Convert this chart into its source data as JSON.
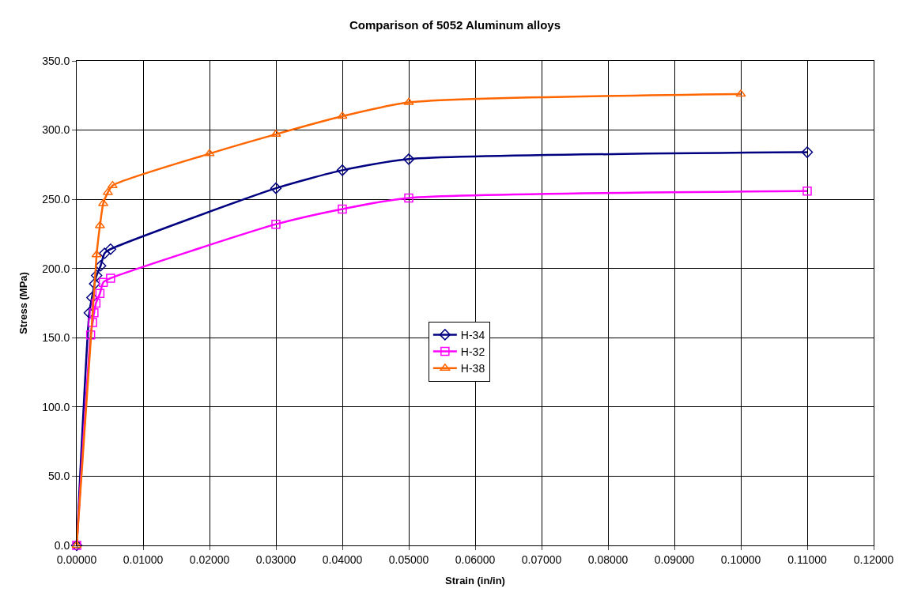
{
  "chart_data": {
    "type": "line",
    "title": "Comparison of 5052 Aluminum alloys",
    "xlabel": "Strain (in/in)",
    "ylabel": "Stress (MPa)",
    "xlim": [
      0,
      0.12
    ],
    "xticks": [
      {
        "value": 0,
        "label": "0.00000"
      },
      {
        "value": 0.01,
        "label": "0.01000"
      },
      {
        "value": 0.02,
        "label": "0.02000"
      },
      {
        "value": 0.03,
        "label": "0.03000"
      },
      {
        "value": 0.04,
        "label": "0.04000"
      },
      {
        "value": 0.05,
        "label": "0.05000"
      },
      {
        "value": 0.06,
        "label": "0.06000"
      },
      {
        "value": 0.07,
        "label": "0.07000"
      },
      {
        "value": 0.08,
        "label": "0.08000"
      },
      {
        "value": 0.09,
        "label": "0.09000"
      },
      {
        "value": 0.1,
        "label": "0.10000"
      },
      {
        "value": 0.11,
        "label": "0.11000"
      },
      {
        "value": 0.12,
        "label": "0.12000"
      }
    ],
    "ylim": [
      0,
      350
    ],
    "yticks": [
      {
        "value": 0,
        "label": "0.0"
      },
      {
        "value": 50,
        "label": "50.0"
      },
      {
        "value": 100,
        "label": "100.0"
      },
      {
        "value": 150,
        "label": "150.0"
      },
      {
        "value": 200,
        "label": "200.0"
      },
      {
        "value": 250,
        "label": "250.0"
      },
      {
        "value": 300,
        "label": "300.0"
      },
      {
        "value": 350,
        "label": "350.0"
      }
    ],
    "grid": true,
    "legend": "center",
    "series": [
      {
        "name": "H-34",
        "color": "#000080",
        "marker": "diamond",
        "x": [
          0,
          0.0019,
          0.0023,
          0.0027,
          0.003,
          0.0036,
          0.0042,
          0.0051,
          0.03,
          0.04,
          0.05,
          0.11
        ],
        "values": [
          0,
          168,
          179,
          189,
          195,
          202,
          211,
          214,
          258,
          271,
          279,
          284
        ]
      },
      {
        "name": "H-32",
        "color": "#ff00ff",
        "marker": "square",
        "x": [
          0,
          0.0021,
          0.0024,
          0.0026,
          0.0029,
          0.0035,
          0.004,
          0.0051,
          0.03,
          0.04,
          0.05,
          0.11
        ],
        "values": [
          0,
          152,
          161,
          168,
          175,
          182,
          190,
          193,
          232,
          243,
          251,
          256
        ]
      },
      {
        "name": "H-38",
        "color": "#ff6600",
        "marker": "triangle",
        "x": [
          0,
          0.003,
          0.0035,
          0.004,
          0.0047,
          0.0054,
          0.02,
          0.03,
          0.04,
          0.05,
          0.1
        ],
        "values": [
          0,
          210,
          231,
          247,
          255,
          260,
          283,
          297,
          310,
          320,
          326
        ]
      }
    ]
  }
}
